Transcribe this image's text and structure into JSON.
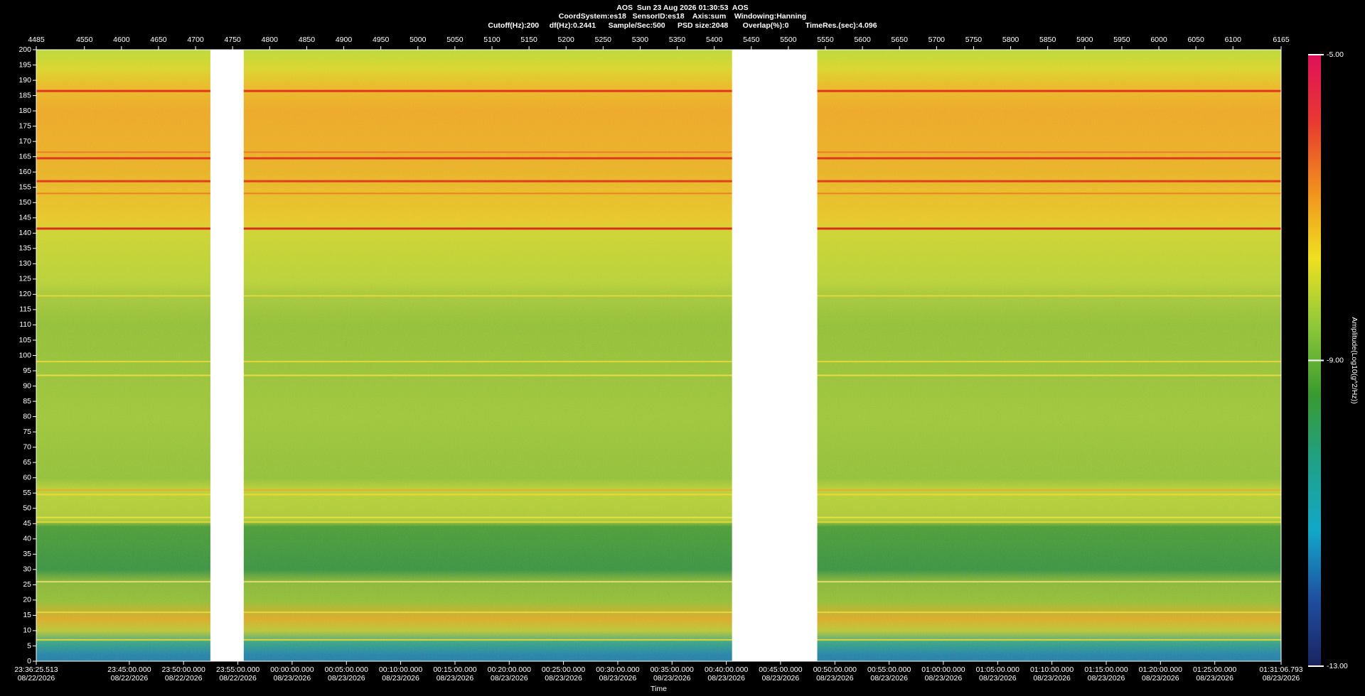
{
  "header": {
    "title": "AOS  Sun 23 Aug 2026 01:30:53  AOS",
    "line2": "CoordSystem:es18   SensorID:es18    Axis:sum    Windowing:Hanning",
    "line3": "Cutoff(Hz):200     df(Hz):0.2441      Sample/Sec:500      PSD size:2048       Overlap(%):0        TimeRes.(sec):4.096"
  },
  "chart_data": {
    "type": "spectrogram",
    "xlim": [
      4485,
      6165
    ],
    "xticks": [
      4485,
      4550,
      4600,
      4650,
      4700,
      4750,
      4800,
      4850,
      4900,
      4950,
      5000,
      5050,
      5100,
      5150,
      5200,
      5250,
      5300,
      5350,
      5400,
      5450,
      5500,
      5550,
      5600,
      5650,
      5700,
      5750,
      5800,
      5850,
      5900,
      5950,
      6000,
      6050,
      6100,
      6165
    ],
    "ylim": [
      0,
      200
    ],
    "yticks": [
      0,
      5,
      10,
      15,
      20,
      25,
      30,
      35,
      40,
      45,
      50,
      55,
      60,
      65,
      70,
      75,
      80,
      85,
      90,
      95,
      100,
      105,
      110,
      115,
      120,
      125,
      130,
      135,
      140,
      145,
      150,
      155,
      160,
      165,
      170,
      175,
      180,
      185,
      190,
      195,
      200
    ],
    "x2ticks": [
      {
        "value": 4485,
        "label": "23:36:25.513"
      },
      {
        "value": 4610.6,
        "label": "23:45:00.000"
      },
      {
        "value": 4683.8,
        "label": "23:50:00.000"
      },
      {
        "value": 4757.1,
        "label": "23:55:00.000"
      },
      {
        "value": 4830.3,
        "label": "00:00:00.000"
      },
      {
        "value": 4903.6,
        "label": "00:05:00.000"
      },
      {
        "value": 4976.8,
        "label": "00:10:00.000"
      },
      {
        "value": 5050.1,
        "label": "00:15:00.000"
      },
      {
        "value": 5123.3,
        "label": "00:20:00.000"
      },
      {
        "value": 5196.5,
        "label": "00:25:00.000"
      },
      {
        "value": 5269.8,
        "label": "00:30:00.000"
      },
      {
        "value": 5343.0,
        "label": "00:35:00.000"
      },
      {
        "value": 5416.3,
        "label": "00:40:00.000"
      },
      {
        "value": 5489.5,
        "label": "00:45:00.000"
      },
      {
        "value": 5562.8,
        "label": "00:50:00.000"
      },
      {
        "value": 5636.0,
        "label": "00:55:00.000"
      },
      {
        "value": 5709.2,
        "label": "01:00:00.000"
      },
      {
        "value": 5782.5,
        "label": "01:05:00.000"
      },
      {
        "value": 5855.7,
        "label": "01:10:00.000"
      },
      {
        "value": 5929.0,
        "label": "01:15:00.000"
      },
      {
        "value": 6002.2,
        "label": "01:20:00.000"
      },
      {
        "value": 6075.5,
        "label": "01:25:00.000"
      },
      {
        "value": 6165,
        "label": "01:31:06.793"
      }
    ],
    "x2tick_dates": [
      "08/22/2026",
      "08/22/2026",
      "08/22/2026",
      "08/22/2026",
      "08/23/2026",
      "08/23/2026",
      "08/23/2026",
      "08/23/2026",
      "08/23/2026",
      "08/23/2026",
      "08/23/2026",
      "08/23/2026",
      "08/23/2026",
      "08/23/2026",
      "08/23/2026",
      "08/23/2026",
      "08/23/2026",
      "08/23/2026",
      "08/23/2026",
      "08/23/2026",
      "08/23/2026",
      "08/23/2026",
      "08/23/2026"
    ],
    "xlabel": "Time",
    "gaps": [
      [
        4720,
        4765
      ],
      [
        5424,
        5539
      ]
    ],
    "lines": [
      {
        "freq": 186.5,
        "color": "#e3261c"
      },
      {
        "freq": 166.5,
        "color": "#ee7a22"
      },
      {
        "freq": 164.5,
        "color": "#df2a1c"
      },
      {
        "freq": 157,
        "color": "#e2301c"
      },
      {
        "freq": 153,
        "color": "#ee7a22"
      },
      {
        "freq": 141.5,
        "color": "#d81c1c"
      },
      {
        "freq": 119.5,
        "color": "#e8dc3a"
      },
      {
        "freq": 98,
        "color": "#f0d83a"
      },
      {
        "freq": 93.5,
        "color": "#f0e040"
      },
      {
        "freq": 56,
        "color": "#f0a828"
      },
      {
        "freq": 54.5,
        "color": "#f0dc38"
      },
      {
        "freq": 47,
        "color": "#f0e040"
      },
      {
        "freq": 45.5,
        "color": "#e8d838"
      },
      {
        "freq": 26,
        "color": "#e8e070"
      },
      {
        "freq": 16,
        "color": "#e8dc40"
      },
      {
        "freq": 7,
        "color": "#e8dc40"
      }
    ],
    "colorbar": {
      "label": "Amplitude(Log10(g^2/Hz))",
      "lim": [
        -13,
        -5
      ],
      "ticks": [
        {
          "value": -13,
          "label": "-13.00"
        },
        {
          "value": -9,
          "label": "-9.00"
        },
        {
          "value": -5,
          "label": "-5.00"
        }
      ],
      "colors": [
        "#1a2460",
        "#1f50a0",
        "#12a8c8",
        "#20a088",
        "#3a9a30",
        "#8cc83a",
        "#f0e020",
        "#f0901e",
        "#e83a30",
        "#e0105a"
      ]
    }
  }
}
